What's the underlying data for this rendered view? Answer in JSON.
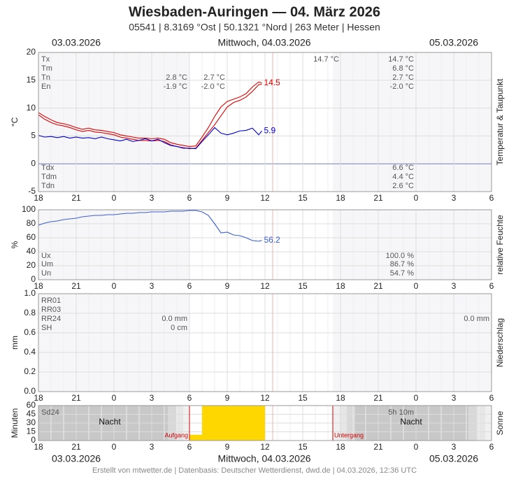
{
  "header": {
    "title": "Wiesbaden-Auringen  —  04. März 2026",
    "subtitle": "05541  |  8.3169 °Ost  |  50.1321 °Nord  |  263 Meter  |  Hessen"
  },
  "dates": {
    "left": "03.03.2026",
    "center": "Mittwoch, 04.03.2026",
    "right": "05.03.2026"
  },
  "footer": "Erstellt von mtwetter.de | Datenbasis: Deutscher Wetterdienst, dwd.de | 04.03.2026, 12:36 UTC",
  "chart_data": [
    {
      "type": "line",
      "y_label": "°C",
      "side_label": "Temperatur & Taupunkt",
      "xlim": [
        0,
        36
      ],
      "xticks": [
        {
          "value": 0,
          "label": "18"
        },
        {
          "value": 3,
          "label": "21"
        },
        {
          "value": 6,
          "label": "0"
        },
        {
          "value": 9,
          "label": "3"
        },
        {
          "value": 12,
          "label": "6"
        },
        {
          "value": 15,
          "label": "9"
        },
        {
          "value": 18,
          "label": "12"
        },
        {
          "value": 21,
          "label": "15"
        },
        {
          "value": 24,
          "label": "18"
        },
        {
          "value": 27,
          "label": "21"
        },
        {
          "value": 30,
          "label": "0"
        },
        {
          "value": 33,
          "label": "3"
        },
        {
          "value": 36,
          "label": "6"
        }
      ],
      "ylim": [
        -5,
        20
      ],
      "yticks": [
        -5,
        0,
        5,
        10,
        15,
        20
      ],
      "x": [
        0,
        0.5,
        1,
        1.5,
        2,
        2.5,
        3,
        3.5,
        4,
        4.5,
        5,
        5.5,
        6,
        6.5,
        7,
        7.5,
        8,
        8.5,
        9,
        9.5,
        10,
        10.5,
        11,
        11.5,
        12,
        12.5,
        13,
        13.5,
        14,
        14.5,
        15,
        15.5,
        16,
        16.5,
        17,
        17.5,
        17.75
      ],
      "series": [
        {
          "color": "#e00000",
          "values": [
            9.2,
            8.5,
            7.9,
            7.4,
            7.2,
            6.9,
            6.5,
            6.2,
            6.4,
            6.1,
            6.0,
            5.8,
            5.6,
            5.2,
            5.0,
            4.8,
            4.6,
            4.6,
            4.5,
            4.6,
            4.4,
            3.8,
            3.5,
            3.3,
            3.1,
            3.2,
            4.8,
            6.5,
            8.5,
            10.2,
            11.2,
            11.6,
            12.0,
            12.6,
            13.8,
            14.7,
            14.5
          ]
        },
        {
          "color": "#e00000",
          "values": [
            8.8,
            8.0,
            7.4,
            7.0,
            6.8,
            6.5,
            6.1,
            5.8,
            6.0,
            5.7,
            5.6,
            5.4,
            5.2,
            4.8,
            4.6,
            4.4,
            4.2,
            4.2,
            4.1,
            4.2,
            4.0,
            3.4,
            3.1,
            2.9,
            2.7,
            2.8,
            4.2,
            5.6,
            7.0,
            8.6,
            10.2,
            11.0,
            11.4,
            12.0,
            13.0,
            14.2,
            14.3
          ]
        },
        {
          "color": "#0000d0",
          "values": [
            5.1,
            4.8,
            4.9,
            4.7,
            4.9,
            4.6,
            4.8,
            4.6,
            4.7,
            4.5,
            4.8,
            4.5,
            4.3,
            4.1,
            4.4,
            4.0,
            4.2,
            4.5,
            4.1,
            4.4,
            3.8,
            3.3,
            3.1,
            2.8,
            2.8,
            2.7,
            4.0,
            5.2,
            6.5,
            5.5,
            5.2,
            5.5,
            5.9,
            6.0,
            6.4,
            5.2,
            5.9
          ]
        }
      ],
      "stats": [
        {
          "label": "Tx",
          "cells": [
            null,
            null,
            "14.7 °C",
            "14.7 °C"
          ]
        },
        {
          "label": "Tm",
          "cells": [
            null,
            null,
            null,
            "6.8 °C"
          ]
        },
        {
          "label": "Tn",
          "cells": [
            "2.8 °C",
            "2.7 °C",
            null,
            "2.7 °C"
          ]
        },
        {
          "label": "En",
          "cells": [
            "-1.9 °C",
            "-2.0 °C",
            null,
            "-2.0 °C"
          ]
        }
      ],
      "stats_bottom": [
        {
          "label": "Tdx",
          "cells": [
            null,
            null,
            null,
            "6.6 °C"
          ]
        },
        {
          "label": "Tdm",
          "cells": [
            null,
            null,
            null,
            "4.4 °C"
          ]
        },
        {
          "label": "Tdn",
          "cells": [
            null,
            null,
            null,
            "2.6 °C"
          ]
        }
      ]
    },
    {
      "type": "line",
      "y_label": "%",
      "side_label": "relative Feuchte",
      "xlim": [
        0,
        36
      ],
      "xticks": [
        {
          "value": 0,
          "label": "18"
        },
        {
          "value": 3,
          "label": "21"
        },
        {
          "value": 6,
          "label": "0"
        },
        {
          "value": 9,
          "label": "3"
        },
        {
          "value": 12,
          "label": "6"
        },
        {
          "value": 15,
          "label": "9"
        },
        {
          "value": 18,
          "label": "12"
        },
        {
          "value": 21,
          "label": "15"
        },
        {
          "value": 24,
          "label": "18"
        },
        {
          "value": 27,
          "label": "21"
        },
        {
          "value": 30,
          "label": "0"
        },
        {
          "value": 33,
          "label": "3"
        },
        {
          "value": 36,
          "label": "6"
        }
      ],
      "ylim": [
        0,
        100
      ],
      "yticks": [
        0,
        20,
        40,
        60,
        80,
        100
      ],
      "x": [
        0,
        0.5,
        1,
        1.5,
        2,
        2.5,
        3,
        3.5,
        4,
        4.5,
        5,
        5.5,
        6,
        6.5,
        7,
        7.5,
        8,
        8.5,
        9,
        9.5,
        10,
        10.5,
        11,
        11.5,
        12,
        12.5,
        13,
        13.5,
        14,
        14.5,
        15,
        15.5,
        16,
        16.5,
        17,
        17.5,
        17.75
      ],
      "series": [
        {
          "color": "#3a5fd0",
          "values": [
            78,
            81,
            83,
            84,
            86,
            87,
            88,
            90,
            91,
            92,
            92,
            93,
            93,
            94,
            95,
            95,
            96,
            96,
            97,
            97,
            97,
            98,
            98,
            98,
            99,
            99,
            97,
            92,
            80,
            67,
            68,
            64,
            63,
            60,
            56,
            55,
            56.2
          ]
        }
      ],
      "stats": [
        {
          "label": "Ux",
          "cells": [
            "100.0 %"
          ]
        },
        {
          "label": "Um",
          "cells": [
            "86.7 %"
          ]
        },
        {
          "label": "Un",
          "cells": [
            "54.7 %"
          ]
        }
      ]
    },
    {
      "type": "bar",
      "y_label": "mm",
      "side_label": "Niederschlag",
      "xlim": [
        0,
        36
      ],
      "xticks": [
        {
          "value": 0,
          "label": "18"
        },
        {
          "value": 3,
          "label": "21"
        },
        {
          "value": 6,
          "label": "0"
        },
        {
          "value": 9,
          "label": "3"
        },
        {
          "value": 12,
          "label": "6"
        },
        {
          "value": 15,
          "label": "9"
        },
        {
          "value": 18,
          "label": "12"
        },
        {
          "value": 21,
          "label": "15"
        },
        {
          "value": 24,
          "label": "18"
        },
        {
          "value": 27,
          "label": "21"
        },
        {
          "value": 30,
          "label": "0"
        },
        {
          "value": 33,
          "label": "3"
        },
        {
          "value": 36,
          "label": "6"
        }
      ],
      "ylim": [
        0,
        1
      ],
      "yticks": [
        {
          "value": 0,
          "label": "0.0"
        },
        {
          "value": 0.2,
          "label": "0.2"
        },
        {
          "value": 0.4,
          "label": "0.4"
        },
        {
          "value": 0.6,
          "label": "0.6"
        },
        {
          "value": 0.8,
          "label": "0.8"
        },
        {
          "value": 1,
          "label": "1.0"
        }
      ],
      "stats": [
        {
          "label": "RR01",
          "cells": [
            null,
            null
          ]
        },
        {
          "label": "RR03",
          "cells": [
            null,
            null
          ]
        },
        {
          "label": "RR24",
          "cells": [
            "0.0 mm",
            "0.0 mm"
          ]
        },
        {
          "label": "SH",
          "cells": [
            "0 cm",
            null
          ]
        }
      ]
    },
    {
      "type": "histogram",
      "y_label": "Minuten",
      "side_label": "Sonne",
      "xlim": [
        0,
        36
      ],
      "xticks": [
        {
          "value": 0,
          "label": "18"
        },
        {
          "value": 3,
          "label": "21"
        },
        {
          "value": 6,
          "label": "0"
        },
        {
          "value": 9,
          "label": "3"
        },
        {
          "value": 12,
          "label": "6"
        },
        {
          "value": 15,
          "label": "9"
        },
        {
          "value": 18,
          "label": "12"
        },
        {
          "value": 21,
          "label": "15"
        },
        {
          "value": 24,
          "label": "18"
        },
        {
          "value": 27,
          "label": "21"
        },
        {
          "value": 30,
          "label": "0"
        },
        {
          "value": 33,
          "label": "3"
        },
        {
          "value": 36,
          "label": "6"
        }
      ],
      "ylim": [
        0,
        60
      ],
      "yticks": [
        0,
        15,
        30,
        45,
        60
      ],
      "bins": [
        12,
        13,
        14,
        15,
        16,
        17,
        18
      ],
      "values": [
        10,
        60,
        60,
        60,
        60,
        60
      ],
      "color": "#ffd700",
      "notes": [
        "Nacht",
        "Nacht",
        "Aufgang",
        "Untergang"
      ],
      "stats": [
        {
          "label": "Sd24",
          "cells": [
            "5h 10m"
          ]
        }
      ]
    }
  ]
}
